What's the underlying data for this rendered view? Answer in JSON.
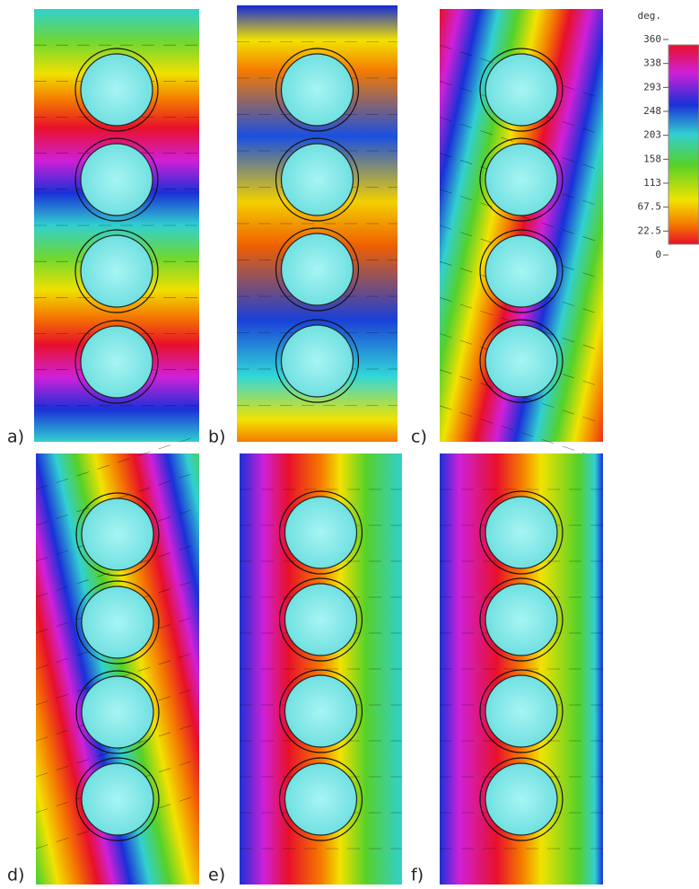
{
  "panels": [
    {
      "label": "a)"
    },
    {
      "label": "b)"
    },
    {
      "label": "c)"
    },
    {
      "label": "d)"
    },
    {
      "label": "e)"
    },
    {
      "label": "f)"
    }
  ],
  "colorbar": {
    "unit": "deg.",
    "ticks": [
      "360",
      "338",
      "293",
      "248",
      "203",
      "158",
      "113",
      "67.5",
      "22.5",
      "0"
    ]
  }
}
